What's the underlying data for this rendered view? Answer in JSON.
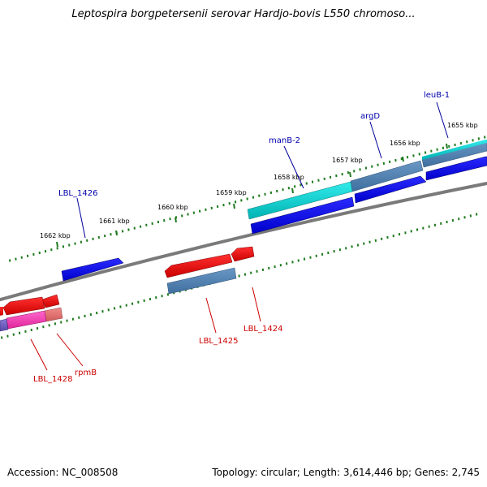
{
  "title": "Leptospira borgpetersenii serovar Hardjo-bovis L550 chromoso...",
  "footer": {
    "accession": "Accession: NC_008508",
    "summary": "Topology: circular; Length: 3,614,446 bp; Genes: 2,745"
  },
  "colors": {
    "backbone": "#808080",
    "tick": "#1e7a1e",
    "forward_label": "#0000aa",
    "reverse_label": "#cc0000",
    "ruler_label": "#000000"
  },
  "ruler_labels": [
    "1655 kbp",
    "1656 kbp",
    "1657 kbp",
    "1658 kbp",
    "1659 kbp",
    "1660 kbp",
    "1661 kbp",
    "1662 kbp"
  ],
  "forward_gene_labels": [
    "leuB-1",
    "argD",
    "manB-2",
    "LBL_1426"
  ],
  "reverse_gene_labels": [
    "LBL_1424",
    "LBL_1425",
    "rpmB",
    "LBL_1428"
  ]
}
